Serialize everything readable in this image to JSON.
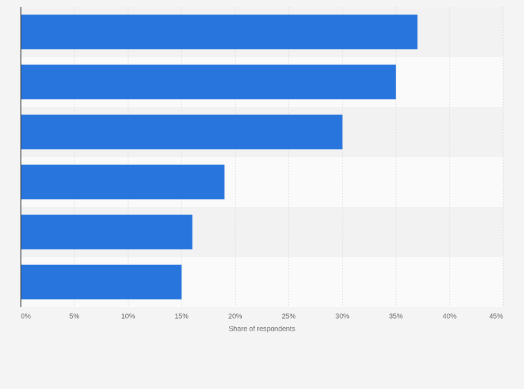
{
  "chart_data": {
    "type": "bar",
    "orientation": "horizontal",
    "xlabel": "Share of respondents",
    "categories": [
      null,
      null,
      null,
      null,
      null,
      null
    ],
    "values": [
      37,
      35,
      30,
      19,
      16,
      15
    ],
    "color": "#2876dd",
    "xlim": [
      0,
      45
    ],
    "xticks": [
      {
        "value": 0,
        "label": "0%"
      },
      {
        "value": 5,
        "label": "5%"
      },
      {
        "value": 10,
        "label": "10%"
      },
      {
        "value": 15,
        "label": "15%"
      },
      {
        "value": 20,
        "label": "20%"
      },
      {
        "value": 25,
        "label": "25%"
      },
      {
        "value": 30,
        "label": "30%"
      },
      {
        "value": 35,
        "label": "35%"
      },
      {
        "value": 40,
        "label": "40%"
      },
      {
        "value": 45,
        "label": "45%"
      }
    ],
    "grid": true
  }
}
